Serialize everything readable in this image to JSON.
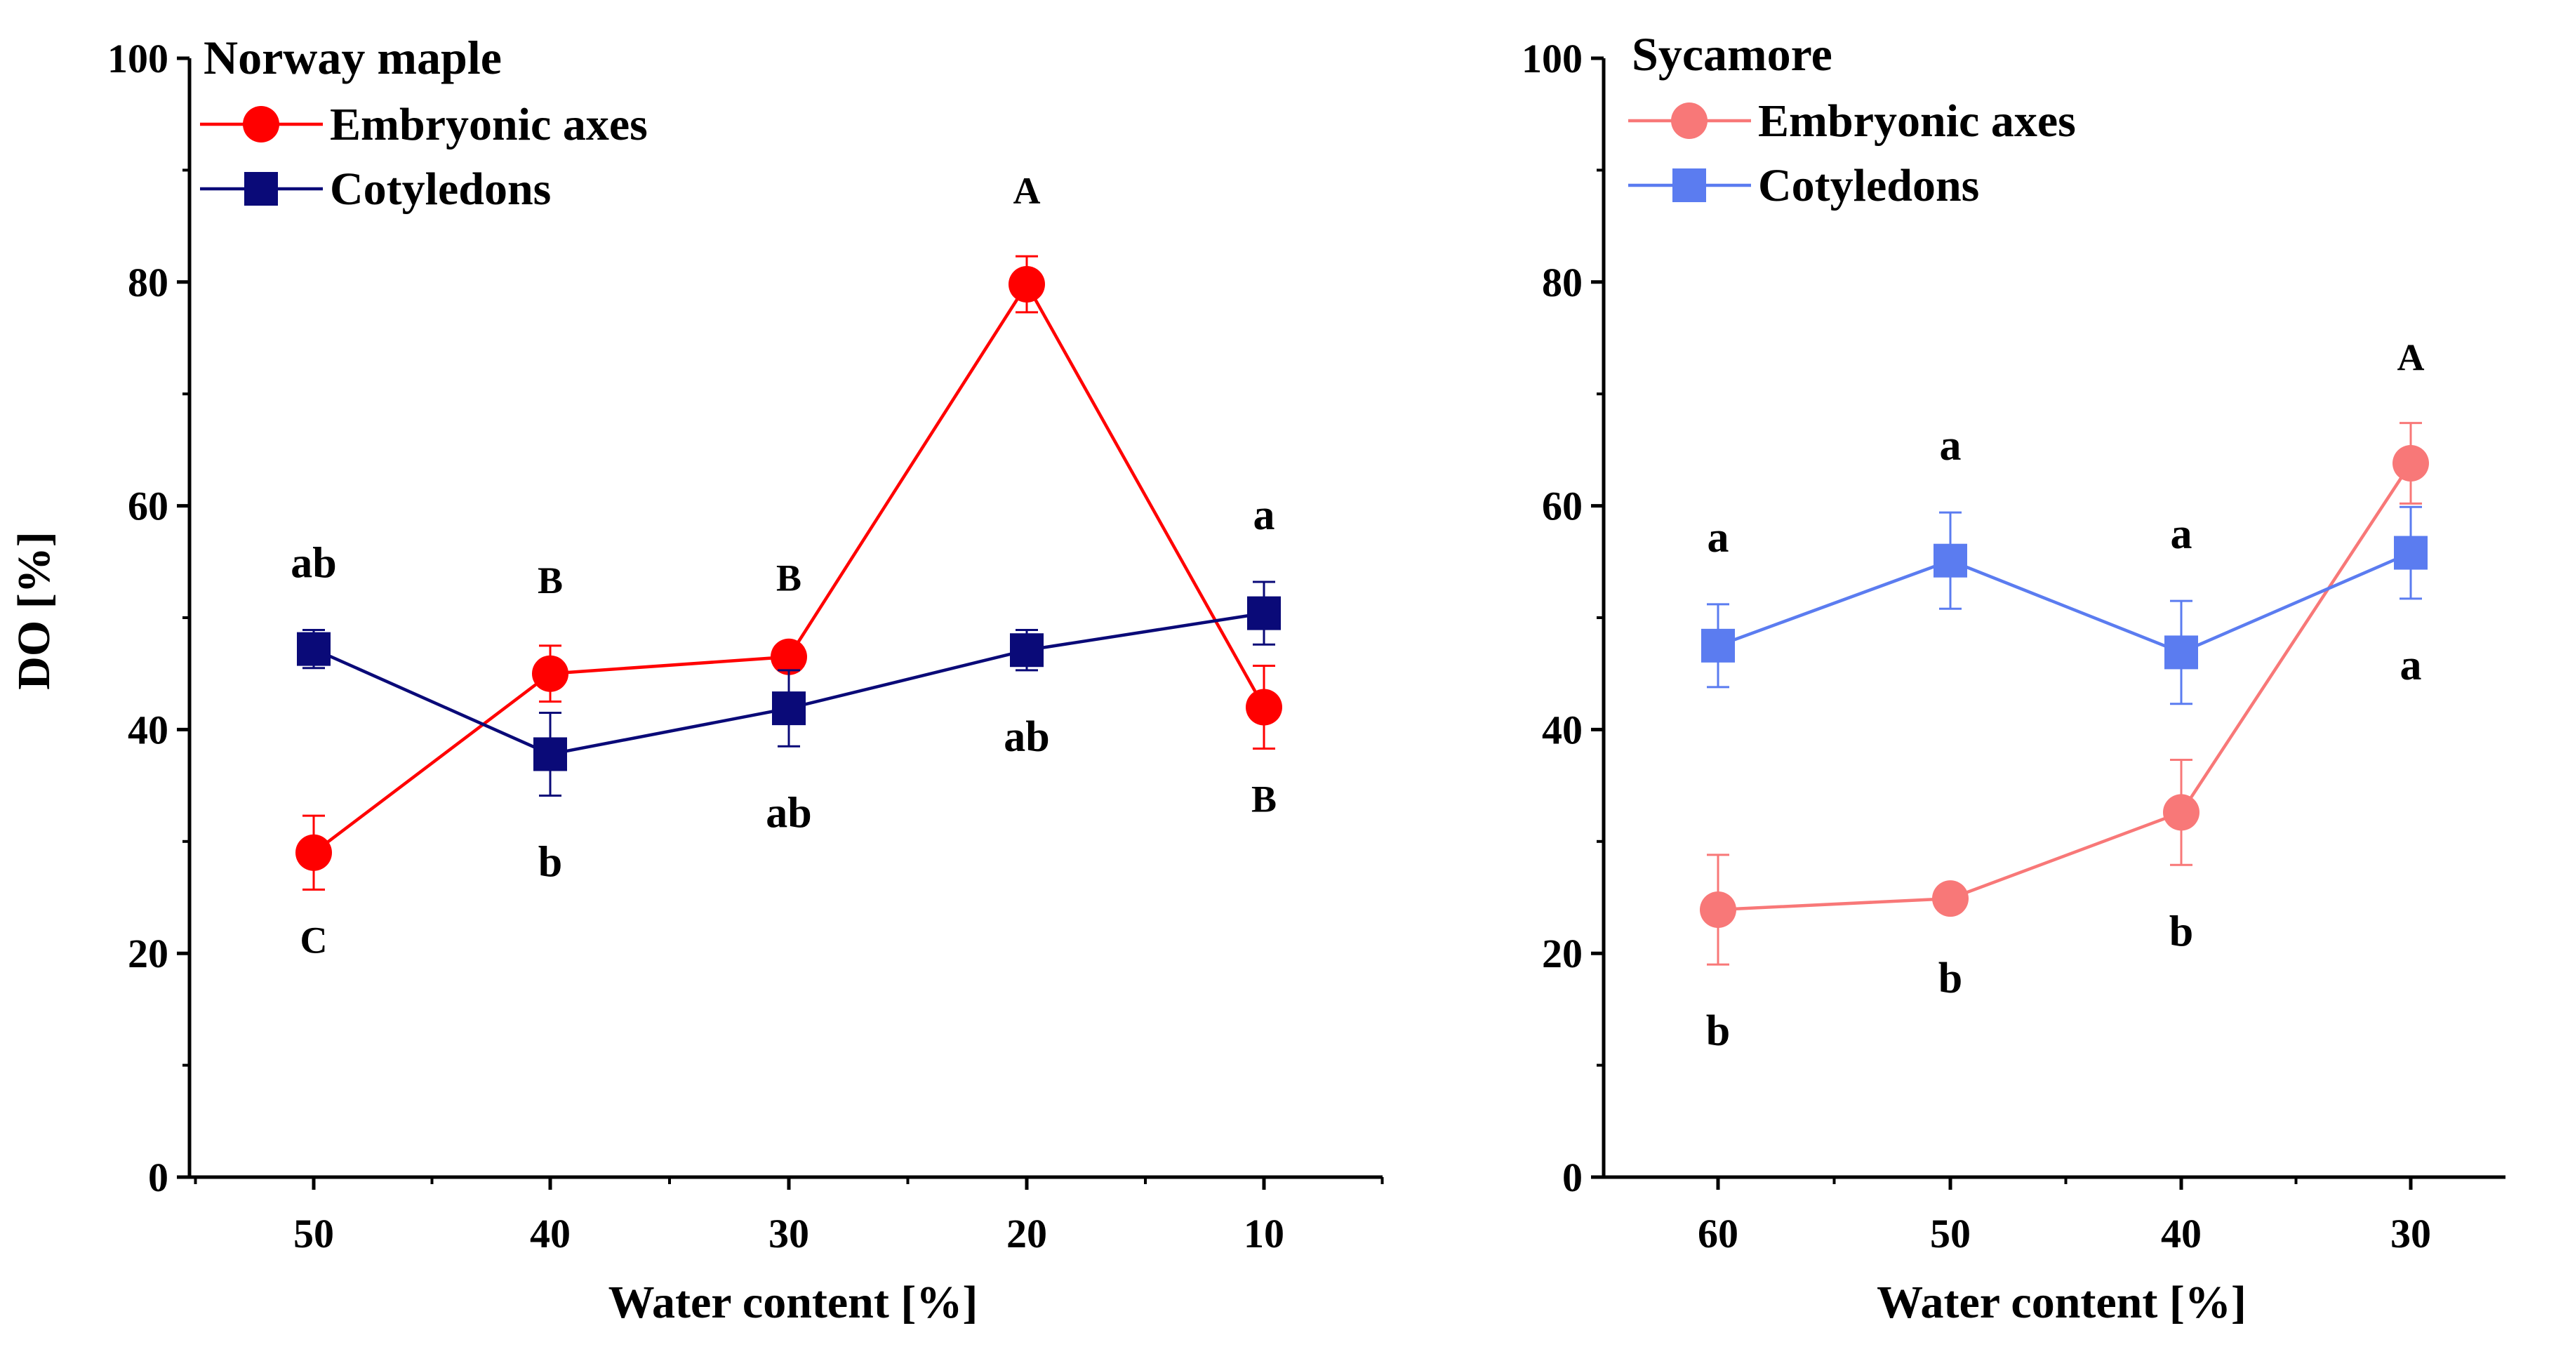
{
  "y_axis_title": "DO [%]",
  "chart_data": [
    {
      "type": "line",
      "title": "Norway maple",
      "xlabel": "Water content [%]",
      "ylabel": "DO [%]",
      "categories": [
        "50",
        "40",
        "30",
        "20",
        "10"
      ],
      "ylim": [
        0,
        100
      ],
      "yticks": [
        0,
        20,
        40,
        60,
        80,
        100
      ],
      "series": [
        {
          "name": "Embryonic axes",
          "marker": "circle",
          "color": "#ff0000",
          "values": [
            29,
            45,
            46.5,
            79.8,
            42
          ],
          "errors": [
            3.3,
            2.5,
            1.2,
            2.5,
            3.7
          ],
          "labels": [
            "C",
            "B",
            "B",
            "A",
            "B"
          ],
          "label_pos": [
            "below",
            "above",
            "above",
            "above",
            "below"
          ]
        },
        {
          "name": "Cotyledons",
          "marker": "square",
          "color": "#0a0a78",
          "values": [
            47.2,
            37.8,
            41.9,
            47.1,
            50.4
          ],
          "errors": [
            1.7,
            3.7,
            3.4,
            1.8,
            2.8
          ],
          "labels": [
            "ab",
            "b",
            "ab",
            "ab",
            "a"
          ],
          "label_pos": [
            "above",
            "below",
            "below",
            "below",
            "above"
          ]
        }
      ]
    },
    {
      "type": "line",
      "title": "Sycamore",
      "xlabel": "Water content [%]",
      "ylabel": "",
      "categories": [
        "60",
        "50",
        "40",
        "30"
      ],
      "ylim": [
        0,
        100
      ],
      "yticks": [
        0,
        20,
        40,
        60,
        80,
        100
      ],
      "series": [
        {
          "name": "Embryonic axes",
          "marker": "circle",
          "color": "#f87878",
          "values": [
            23.9,
            24.9,
            32.6,
            63.8
          ],
          "errors": [
            4.9,
            1.2,
            4.7,
            3.6
          ],
          "labels": [
            "b",
            "b",
            "b",
            "A"
          ],
          "label_pos": [
            "below",
            "below",
            "below",
            "above"
          ]
        },
        {
          "name": "Cotyledons",
          "marker": "square",
          "color": "#5b7cf0",
          "values": [
            47.5,
            55.1,
            46.9,
            55.8
          ],
          "errors": [
            3.7,
            4.3,
            4.6,
            4.1
          ],
          "labels": [
            "a",
            "a",
            "a",
            "a"
          ],
          "label_pos": [
            "above",
            "above",
            "above",
            "below"
          ]
        }
      ]
    }
  ]
}
